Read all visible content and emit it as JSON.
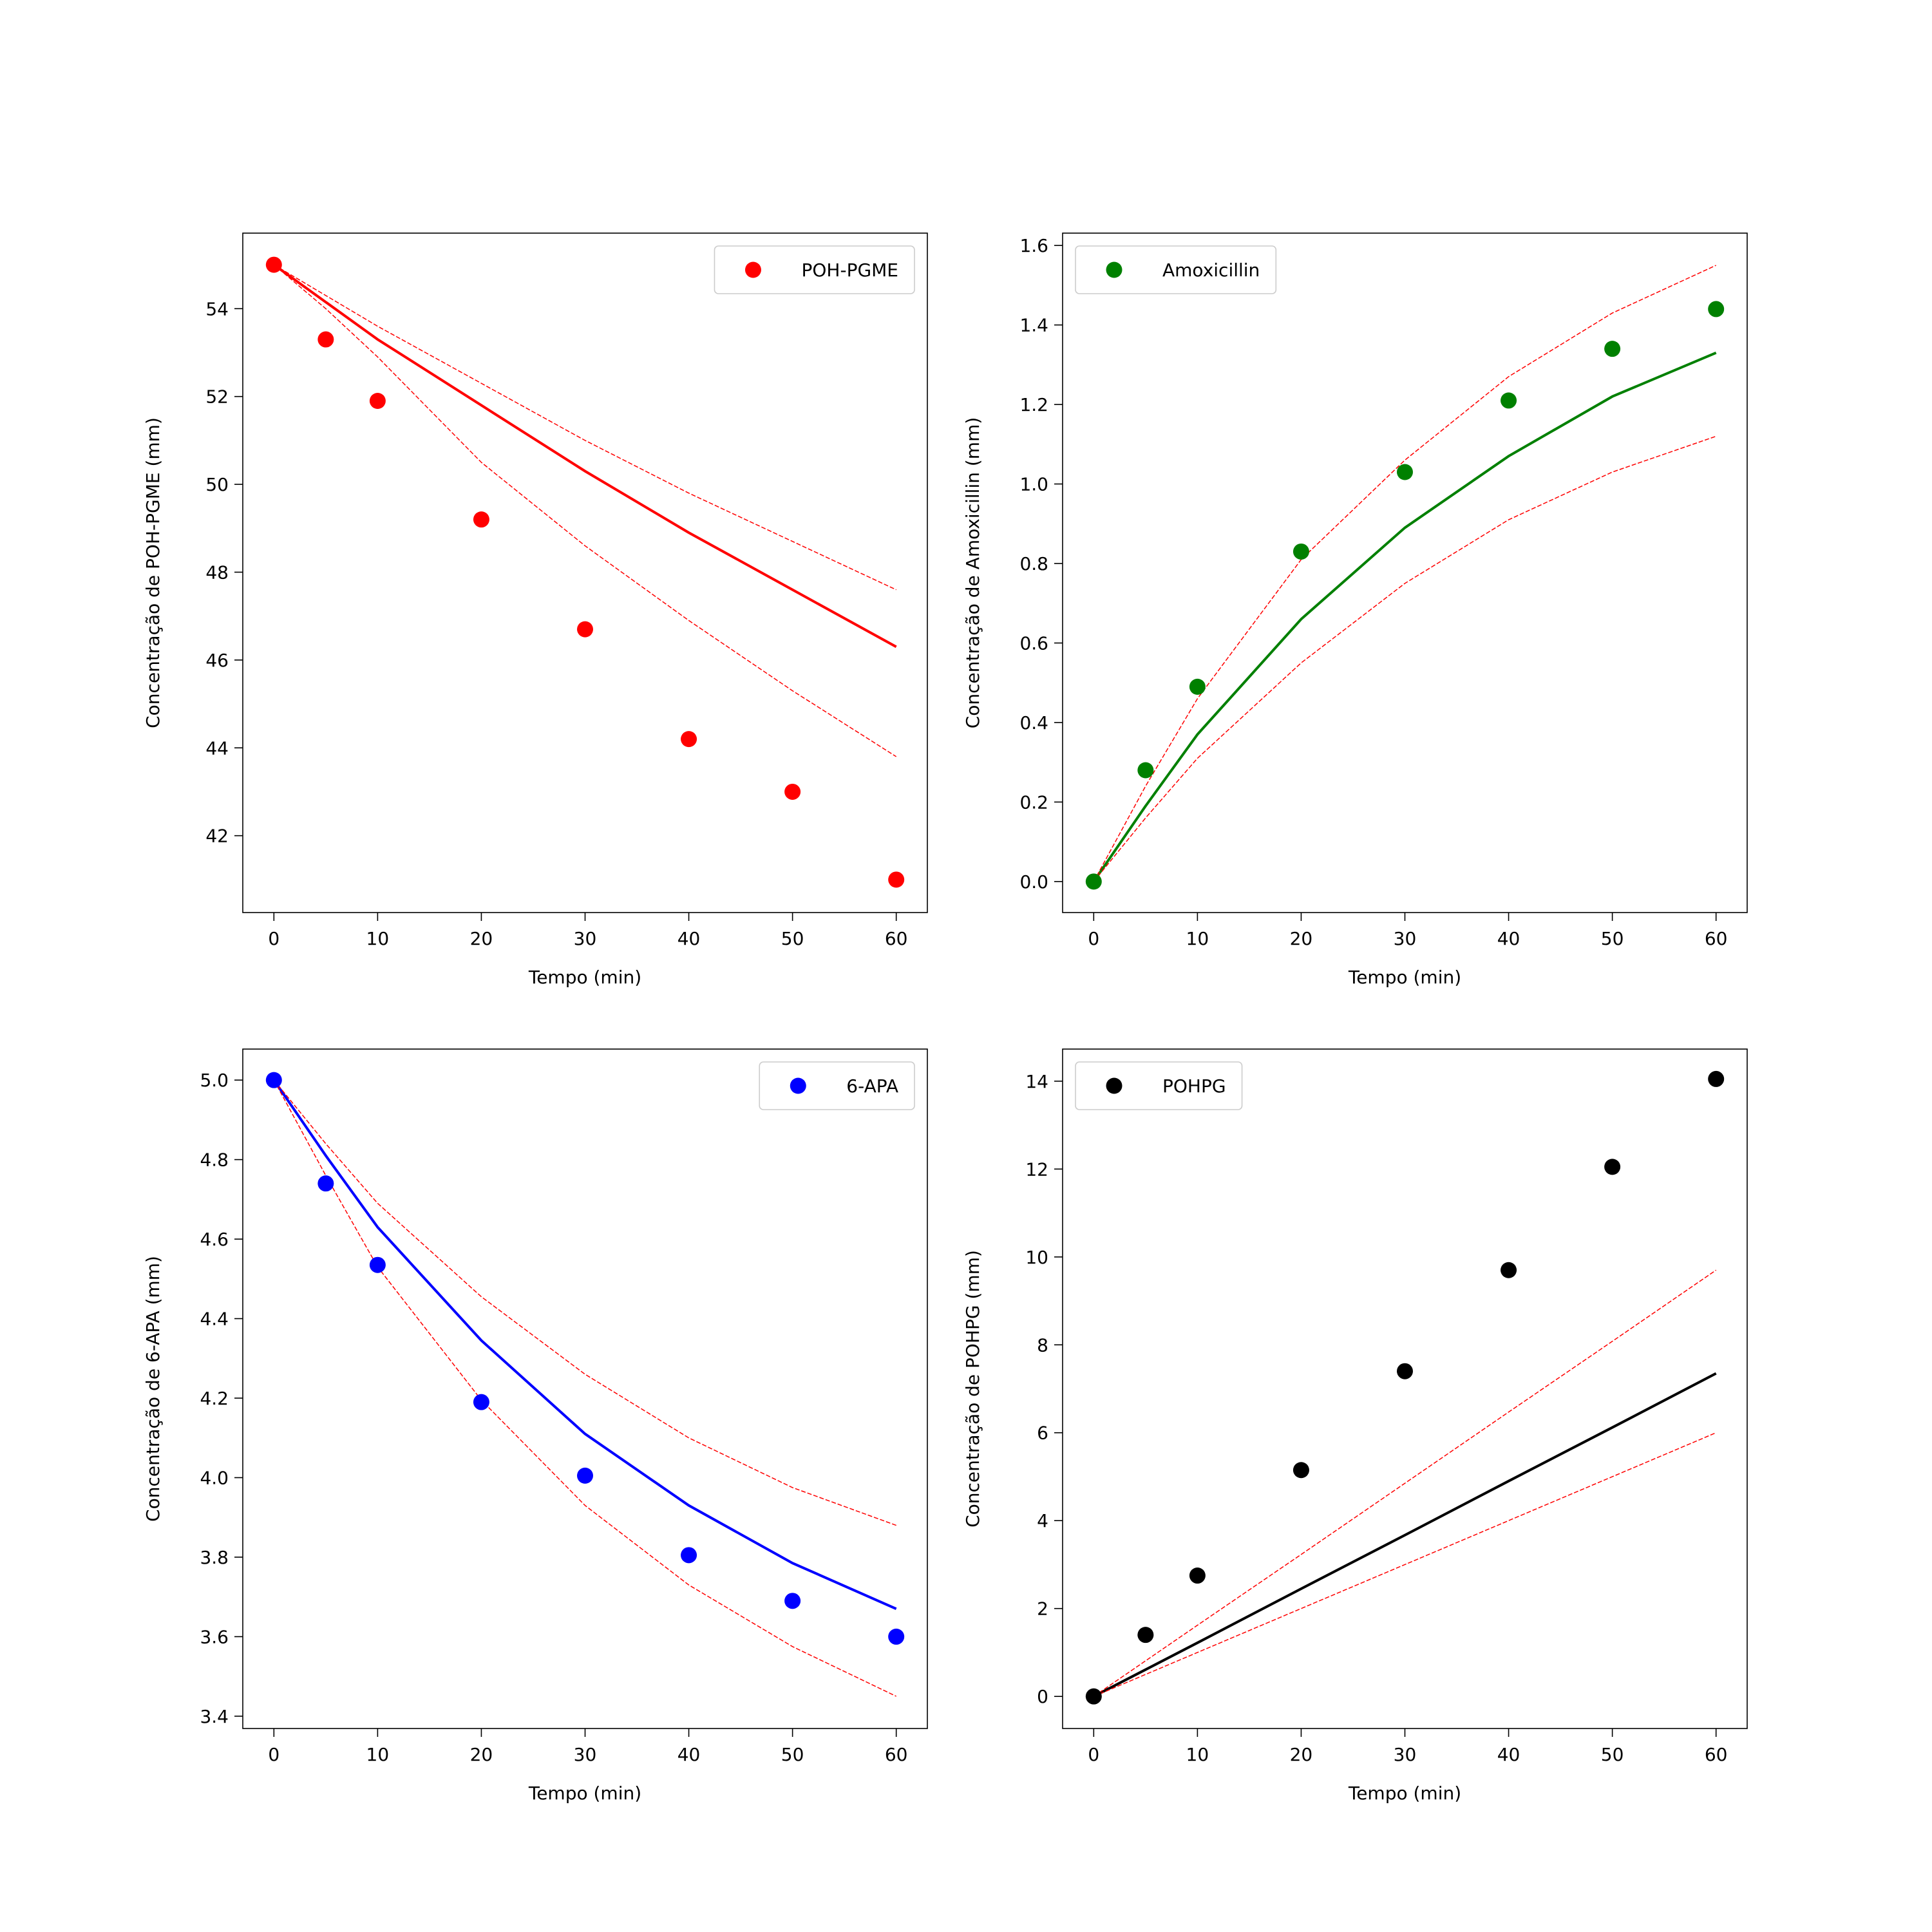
{
  "chart_data": [
    {
      "type": "line",
      "xlabel": "Tempo (min)",
      "ylabel": "Concentração de POH-PGME (mm)",
      "legend": "upper right",
      "x": [
        0,
        5,
        10,
        20,
        30,
        40,
        50,
        60
      ],
      "xlim": [
        -3,
        63
      ],
      "xticks": [
        0,
        10,
        20,
        30,
        40,
        50,
        60
      ],
      "ylim": [
        40.25,
        55.72
      ],
      "yticks": [
        42,
        44,
        46,
        48,
        50,
        52,
        54
      ],
      "series": [
        {
          "name": "POH-PGME",
          "style": "markers",
          "color": "#ff0000",
          "values": [
            55,
            53.3,
            51.9,
            49.2,
            46.7,
            44.2,
            43.0,
            41.0
          ]
        },
        {
          "style": "solid",
          "color": "#ff0000",
          "values": [
            55,
            54.15,
            53.3,
            51.8,
            50.3,
            48.9,
            47.6,
            46.3
          ]
        },
        {
          "style": "dashed",
          "color": "#ff0000",
          "values": [
            55,
            54.3,
            53.6,
            52.3,
            51.0,
            49.8,
            48.7,
            47.6
          ]
        },
        {
          "style": "dashed",
          "color": "#ff0000",
          "values": [
            55,
            54.0,
            52.9,
            50.5,
            48.6,
            46.9,
            45.3,
            43.8
          ]
        }
      ]
    },
    {
      "type": "line",
      "xlabel": "Tempo (min)",
      "ylabel": "Concentração de Amoxicillin (mm)",
      "legend": "upper left",
      "x": [
        0,
        5,
        10,
        20,
        30,
        40,
        50,
        60
      ],
      "xlim": [
        -3,
        63
      ],
      "xticks": [
        0,
        10,
        20,
        30,
        40,
        50,
        60
      ],
      "ylim": [
        -0.078,
        1.631
      ],
      "yticks": [
        {
          "value": 0,
          "label": "0.0"
        },
        0.2,
        0.4,
        0.6,
        0.8,
        {
          "value": 1,
          "label": "1.0"
        },
        1.2,
        1.4,
        1.6
      ],
      "series": [
        {
          "name": "Amoxicillin",
          "style": "markers",
          "color": "#008000",
          "values": [
            0,
            0.28,
            0.49,
            0.83,
            1.03,
            1.21,
            1.34,
            1.44
          ]
        },
        {
          "style": "solid",
          "color": "#008000",
          "values": [
            0,
            0.19,
            0.37,
            0.66,
            0.89,
            1.07,
            1.22,
            1.33
          ]
        },
        {
          "style": "dashed",
          "color": "#ff0000",
          "values": [
            0,
            0.24,
            0.46,
            0.81,
            1.06,
            1.27,
            1.43,
            1.55
          ]
        },
        {
          "style": "dashed",
          "color": "#ff0000",
          "values": [
            0,
            0.16,
            0.31,
            0.55,
            0.75,
            0.91,
            1.03,
            1.12
          ]
        }
      ]
    },
    {
      "type": "line",
      "xlabel": "Tempo (min)",
      "ylabel": "Concentração de 6-APA (mm)",
      "legend": "upper right",
      "x": [
        0,
        5,
        10,
        20,
        30,
        40,
        50,
        60
      ],
      "xlim": [
        -3,
        63
      ],
      "xticks": [
        0,
        10,
        20,
        30,
        40,
        50,
        60
      ],
      "ylim": [
        3.369,
        5.078
      ],
      "yticks": [
        3.4,
        3.6,
        3.8,
        {
          "value": 4,
          "label": "4.0"
        },
        4.2,
        4.4,
        4.6,
        4.8,
        {
          "value": 5,
          "label": "5.0"
        }
      ],
      "series": [
        {
          "name": "6-APA",
          "style": "markers",
          "color": "#0000ff",
          "values": [
            5.0,
            4.74,
            4.535,
            4.19,
            4.005,
            3.805,
            3.69,
            3.6
          ]
        },
        {
          "style": "solid",
          "color": "#0000ff",
          "values": [
            5.0,
            4.81,
            4.63,
            4.345,
            4.11,
            3.93,
            3.785,
            3.67
          ]
        },
        {
          "style": "dashed",
          "color": "#ff0000",
          "values": [
            5.0,
            4.84,
            4.69,
            4.455,
            4.26,
            4.1,
            3.975,
            3.88
          ]
        },
        {
          "style": "dashed",
          "color": "#ff0000",
          "values": [
            5.0,
            4.76,
            4.53,
            4.195,
            3.93,
            3.73,
            3.575,
            3.45
          ]
        }
      ]
    },
    {
      "type": "line",
      "xlabel": "Tempo (min)",
      "ylabel": "Concentração de POHPG (mm)",
      "legend": "upper left",
      "x": [
        0,
        5,
        10,
        20,
        30,
        40,
        50,
        60
      ],
      "xlim": [
        -3,
        63
      ],
      "xticks": [
        0,
        10,
        20,
        30,
        40,
        50,
        60
      ],
      "ylim": [
        -0.73,
        14.73
      ],
      "yticks": [
        0,
        2,
        4,
        6,
        8,
        10,
        12,
        14
      ],
      "series": [
        {
          "name": "POHPG",
          "style": "markers",
          "color": "#000000",
          "values": [
            0,
            1.4,
            2.75,
            5.15,
            7.4,
            9.7,
            12.05,
            14.05
          ]
        },
        {
          "style": "solid",
          "color": "#000000",
          "values": [
            0,
            0.61,
            1.22,
            2.45,
            3.67,
            4.9,
            6.12,
            7.35
          ]
        },
        {
          "style": "dashed",
          "color": "#ff0000",
          "values": [
            0,
            0.81,
            1.62,
            3.23,
            4.85,
            6.47,
            8.08,
            9.7
          ]
        },
        {
          "style": "dashed",
          "color": "#ff0000",
          "values": [
            0,
            0.5,
            1.0,
            2.0,
            3.0,
            4.0,
            5.0,
            6.0
          ]
        }
      ]
    }
  ]
}
